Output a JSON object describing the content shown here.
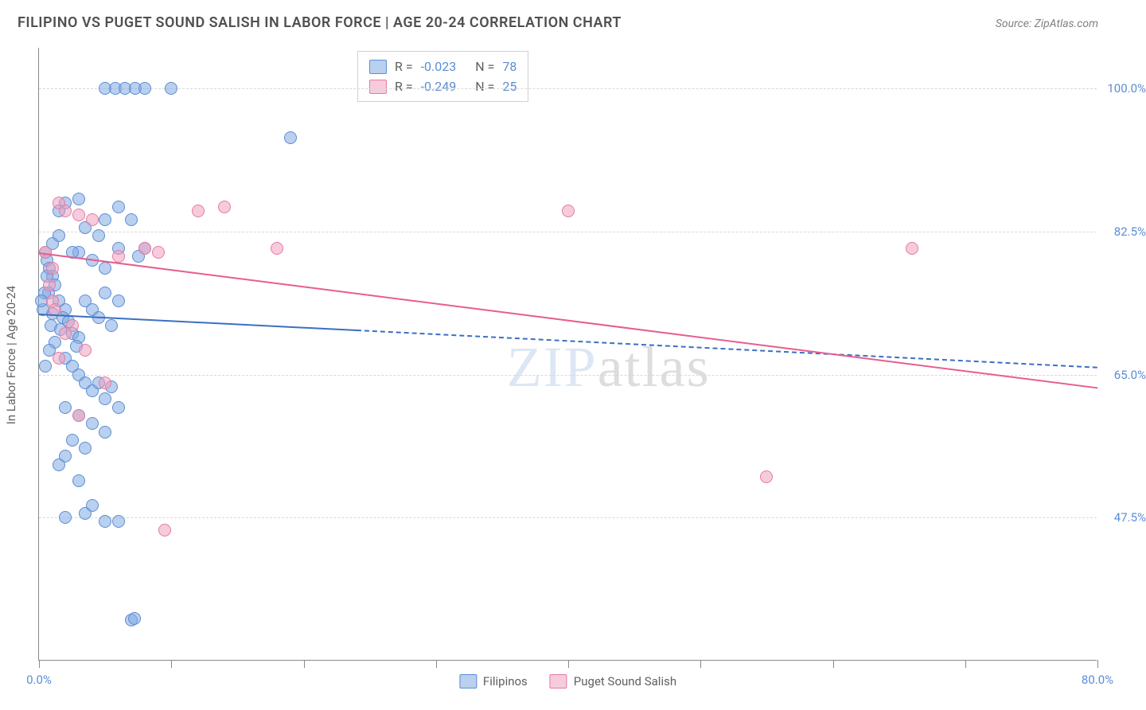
{
  "title": "FILIPINO VS PUGET SOUND SALISH IN LABOR FORCE | AGE 20-24 CORRELATION CHART",
  "source": "Source: ZipAtlas.com",
  "ylabel": "In Labor Force | Age 20-24",
  "watermark_zip": "ZIP",
  "watermark_atlas": "atlas",
  "chart": {
    "type": "scatter",
    "xlim": [
      0,
      80
    ],
    "ylim": [
      30,
      105
    ],
    "x_ticks": [
      0,
      10,
      20,
      30,
      40,
      50,
      60,
      70,
      80
    ],
    "x_tick_labels": {
      "0": "0.0%",
      "80": "80.0%"
    },
    "y_grid": [
      47.5,
      65.0,
      82.5,
      100.0
    ],
    "y_grid_labels": [
      "47.5%",
      "65.0%",
      "82.5%",
      "100.0%"
    ],
    "background_color": "#ffffff",
    "grid_color": "#d8d8d8"
  },
  "series": [
    {
      "name": "Filipinos",
      "marker_color": "rgba(130,170,225,0.55)",
      "marker_border": "#5b8dd6",
      "marker_radius": 8,
      "trend": {
        "x1": 0,
        "y1": 72.5,
        "x2": 80,
        "y2": 66,
        "solid_until_x": 24,
        "color": "#3b6fc4",
        "width": 2.5
      },
      "points": [
        [
          0.5,
          80
        ],
        [
          0.6,
          79
        ],
        [
          0.8,
          78
        ],
        [
          1.0,
          77
        ],
        [
          1.2,
          76
        ],
        [
          0.7,
          75
        ],
        [
          1.5,
          74
        ],
        [
          2.0,
          73
        ],
        [
          1.0,
          72.5
        ],
        [
          1.8,
          72
        ],
        [
          2.2,
          71.5
        ],
        [
          0.9,
          71
        ],
        [
          1.6,
          70.5
        ],
        [
          2.5,
          70
        ],
        [
          3.0,
          69.5
        ],
        [
          1.2,
          69
        ],
        [
          2.8,
          68.5
        ],
        [
          3.5,
          74
        ],
        [
          4.0,
          73
        ],
        [
          4.5,
          72
        ],
        [
          5.0,
          75
        ],
        [
          5.5,
          71
        ],
        [
          6.0,
          74
        ],
        [
          3.0,
          80
        ],
        [
          4.0,
          79
        ],
        [
          5.0,
          78
        ],
        [
          6.0,
          80.5
        ],
        [
          4.5,
          82
        ],
        [
          3.5,
          83
        ],
        [
          5.0,
          84
        ],
        [
          6.0,
          85.5
        ],
        [
          7.0,
          84
        ],
        [
          2.0,
          86
        ],
        [
          3.0,
          86.5
        ],
        [
          1.5,
          85
        ],
        [
          2.5,
          80
        ],
        [
          7.5,
          79.5
        ],
        [
          8.0,
          80.5
        ],
        [
          1.0,
          81
        ],
        [
          1.5,
          82
        ],
        [
          2.0,
          67
        ],
        [
          2.5,
          66
        ],
        [
          3.0,
          65
        ],
        [
          3.5,
          64
        ],
        [
          4.0,
          63
        ],
        [
          4.5,
          64
        ],
        [
          5.0,
          62
        ],
        [
          5.5,
          63.5
        ],
        [
          2.0,
          61
        ],
        [
          3.0,
          60
        ],
        [
          4.0,
          59
        ],
        [
          5.0,
          58
        ],
        [
          6.0,
          61
        ],
        [
          2.5,
          57
        ],
        [
          3.5,
          56
        ],
        [
          3.5,
          48
        ],
        [
          5.0,
          47
        ],
        [
          2.0,
          47.5
        ],
        [
          4.0,
          49
        ],
        [
          6.0,
          47
        ],
        [
          7.0,
          35
        ],
        [
          7.2,
          35.2
        ],
        [
          3.0,
          52
        ],
        [
          19.0,
          94
        ],
        [
          5.0,
          100
        ],
        [
          5.8,
          100
        ],
        [
          6.5,
          100
        ],
        [
          7.3,
          100
        ],
        [
          8.0,
          100
        ],
        [
          10.0,
          100
        ],
        [
          2.0,
          55
        ],
        [
          1.5,
          54
        ],
        [
          0.8,
          68
        ],
        [
          0.5,
          66
        ],
        [
          0.3,
          73
        ],
        [
          0.4,
          75
        ],
        [
          0.6,
          77
        ],
        [
          0.2,
          74
        ]
      ]
    },
    {
      "name": "Puget Sound Salish",
      "marker_color": "rgba(240,160,190,0.55)",
      "marker_border": "#e57ba3",
      "marker_radius": 8,
      "trend": {
        "x1": 0,
        "y1": 80,
        "x2": 80,
        "y2": 63.5,
        "solid_until_x": 80,
        "color": "#e85d8f",
        "width": 2.5
      },
      "points": [
        [
          1.5,
          86
        ],
        [
          2.0,
          85
        ],
        [
          3.0,
          84.5
        ],
        [
          4.0,
          84
        ],
        [
          6.0,
          79.5
        ],
        [
          8.0,
          80.5
        ],
        [
          9.0,
          80
        ],
        [
          12.0,
          85
        ],
        [
          14.0,
          85.5
        ],
        [
          18.0,
          80.5
        ],
        [
          40.0,
          85
        ],
        [
          66.0,
          80.5
        ],
        [
          1.0,
          74
        ],
        [
          2.5,
          71
        ],
        [
          3.5,
          68
        ],
        [
          5.0,
          64
        ],
        [
          3.0,
          60
        ],
        [
          55.0,
          52.5
        ],
        [
          9.5,
          46
        ],
        [
          1.0,
          78
        ],
        [
          0.8,
          76
        ],
        [
          1.2,
          73
        ],
        [
          2.0,
          70
        ],
        [
          1.5,
          67
        ],
        [
          0.5,
          80
        ]
      ]
    }
  ],
  "correlation_box": {
    "rows": [
      {
        "swatch_fill": "rgba(130,170,225,0.55)",
        "swatch_border": "#5b8dd6",
        "r": "-0.023",
        "n": "78"
      },
      {
        "swatch_fill": "rgba(240,160,190,0.55)",
        "swatch_border": "#e57ba3",
        "r": "-0.249",
        "n": "25"
      }
    ]
  },
  "legend": [
    {
      "fill": "rgba(130,170,225,0.55)",
      "border": "#5b8dd6",
      "label": "Filipinos"
    },
    {
      "fill": "rgba(240,160,190,0.55)",
      "border": "#e57ba3",
      "label": "Puget Sound Salish"
    }
  ]
}
